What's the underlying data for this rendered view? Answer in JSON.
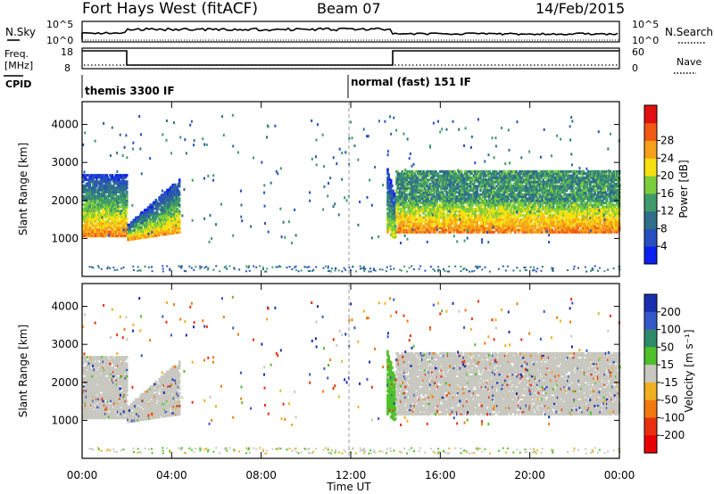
{
  "header": {
    "station": "Fort Hays West (fitACF)",
    "beam": "Beam 07",
    "date": "14/Feb/2015"
  },
  "top_panels": {
    "nsky_label": "N.Sky",
    "nsearch_label": "N.Search",
    "nsky_ticks": [
      "10^5",
      "10^0"
    ],
    "nsearch_ticks": [
      "10^5",
      "10^0"
    ],
    "freq_label_line1": "Freq.",
    "freq_label_line2": "[MHz]",
    "freq_ticks": [
      "18",
      "8"
    ],
    "nave_label": "Nave",
    "nave_ticks": [
      "60",
      "0"
    ],
    "cpid_label": "CPID",
    "cpid_segments": [
      "themis 3300 IF",
      "normal (fast) 151 IF"
    ]
  },
  "chart_data": [
    {
      "type": "heatmap",
      "title": "",
      "xlabel": "",
      "ylabel": "Slant Range [km]",
      "x_range_hours": [
        0,
        24
      ],
      "ylim": [
        0,
        4600
      ],
      "y_ticks": [
        1000,
        2000,
        3000,
        4000
      ],
      "y_tick_labels": [
        "1000",
        "2000",
        "3000",
        "4000"
      ],
      "colorbar": {
        "label": "Power [dB]",
        "ticks": [
          "4",
          "8",
          "12",
          "16",
          "20",
          "24",
          "28"
        ],
        "colors": [
          "#0a1ff0",
          "#274fc0",
          "#2f6f8a",
          "#3e9a6a",
          "#7ccd3c",
          "#f7e010",
          "#f6a01a",
          "#f05a14",
          "#e01010"
        ]
      },
      "echo_regions": [
        {
          "t_start": 0.0,
          "t_end": 2.0,
          "range_low": 1100,
          "range_high": 2700,
          "peak_power_db": 28
        },
        {
          "t_start": 2.0,
          "t_end": 4.3,
          "range_low": 1000,
          "range_high": 2600,
          "peak_power_db": 26
        },
        {
          "t_start": 13.6,
          "t_end": 14.0,
          "range_low": 1000,
          "range_high": 2900,
          "peak_power_db": 22
        },
        {
          "t_start": 14.0,
          "t_end": 24.0,
          "range_low": 1200,
          "range_high": 2800,
          "peak_power_db": 28
        }
      ]
    },
    {
      "type": "heatmap",
      "title": "",
      "xlabel": "Time UT",
      "ylabel": "Slant Range [km]",
      "x_range_hours": [
        0,
        24
      ],
      "x_tick_labels": [
        "00:00",
        "04:00",
        "08:00",
        "12:00",
        "16:00",
        "20:00",
        "00:00"
      ],
      "ylim": [
        0,
        4600
      ],
      "y_ticks": [
        1000,
        2000,
        3000,
        4000
      ],
      "y_tick_labels": [
        "1000",
        "2000",
        "3000",
        "4000"
      ],
      "colorbar": {
        "label": "Velocity [m s⁻¹]",
        "ticks": [
          "200",
          "100",
          "50",
          "15",
          "-15",
          "-50",
          "-100",
          "-200"
        ],
        "colors": [
          "#1a2fb0",
          "#3558c8",
          "#2f8a6a",
          "#4fc02a",
          "#c8c8c0",
          "#f0b020",
          "#f07a10",
          "#e83010",
          "#e80000"
        ]
      },
      "echo_regions": [
        {
          "t_start": 0.0,
          "t_end": 2.0,
          "range_low": 1100,
          "range_high": 2700,
          "velocity_ms": 0
        },
        {
          "t_start": 2.0,
          "t_end": 4.3,
          "range_low": 1000,
          "range_high": 2600,
          "velocity_ms": 0
        },
        {
          "t_start": 13.6,
          "t_end": 14.0,
          "range_low": 1000,
          "range_high": 2900,
          "velocity_ms": 30
        },
        {
          "t_start": 14.0,
          "t_end": 24.0,
          "range_low": 1200,
          "range_high": 2800,
          "velocity_ms": 0
        }
      ]
    }
  ]
}
